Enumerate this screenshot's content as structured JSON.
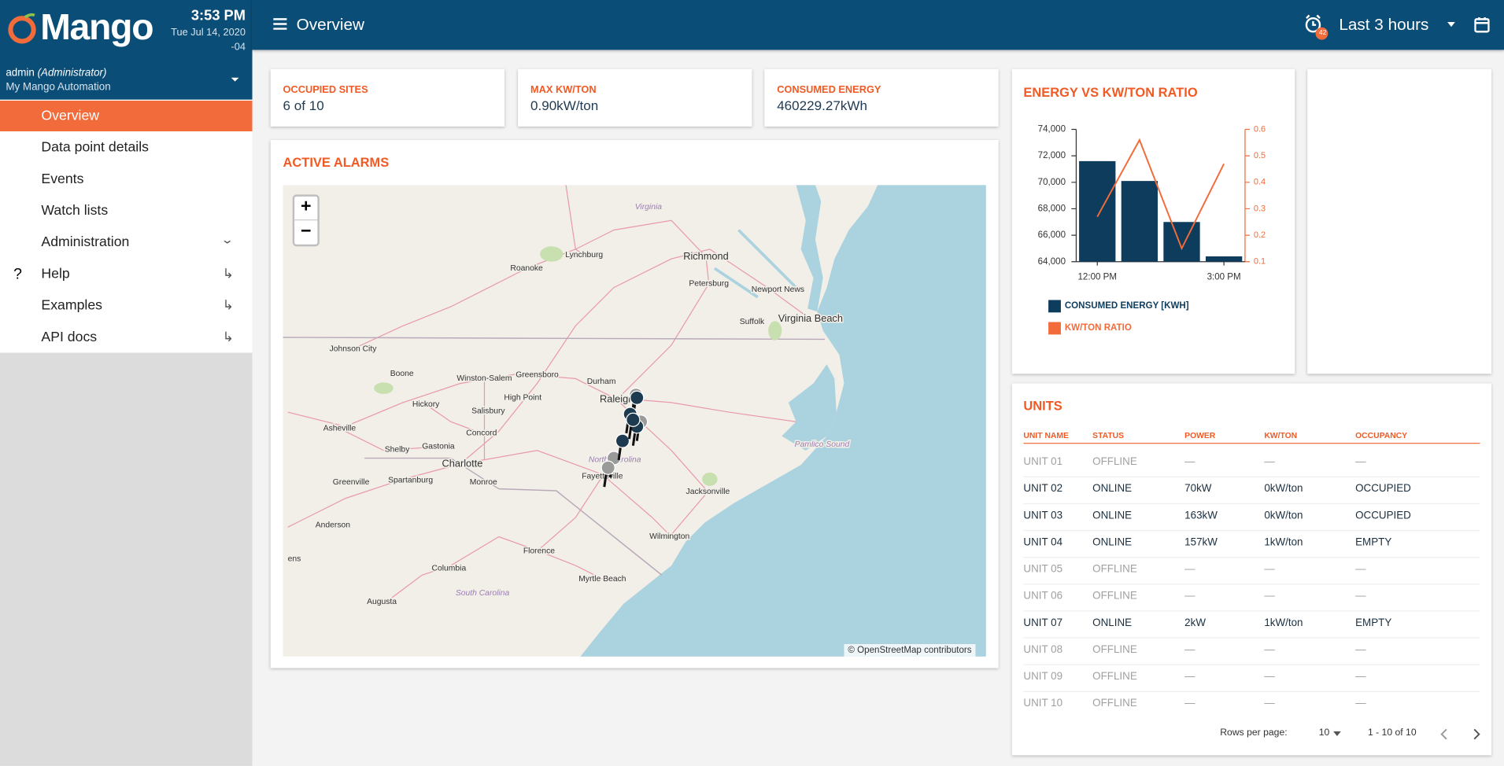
{
  "header": {
    "logo": "Mango",
    "time": "3:53 PM",
    "date": "Tue Jul 14, 2020",
    "tz": "-04",
    "user": "admin",
    "role": "(Administrator)",
    "org": "My Mango Automation",
    "page_title": "Overview",
    "time_range": "Last 3 hours",
    "alarm_badge": "42"
  },
  "nav": [
    "Overview",
    "Data point details",
    "Events",
    "Watch lists",
    "Administration",
    "Help",
    "Examples",
    "API docs"
  ],
  "cards": [
    {
      "title": "OCCUPIED SITES",
      "value": "6 of 10"
    },
    {
      "title": "MAX KW/TON",
      "value": "0.90kW/ton"
    },
    {
      "title": "CONSUMED ENERGY",
      "value": "460229.27kWh"
    }
  ],
  "alarms": {
    "title": "ACTIVE ALARMS",
    "zoom_in": "+",
    "zoom_out": "−",
    "attribution": "© OpenStreetMap contributors",
    "places": [
      "Virginia",
      "Lynchburg",
      "Richmond",
      "Roanoke",
      "Petersburg",
      "Newport News",
      "Suffolk",
      "Virginia Beach",
      "Johnson City",
      "Boone",
      "Winston-Salem",
      "Greensboro",
      "Durham",
      "Raleigh",
      "High Point",
      "Hickory",
      "Salisbury",
      "Asheville",
      "Concord",
      "Shelby",
      "Gastonia",
      "Charlotte",
      "North Carolina",
      "Fayetteville",
      "Spartanburg",
      "Greenville",
      "Monroe",
      "Jacksonville",
      "Pamlico Sound",
      "Anderson",
      "Wilmington",
      "Florence",
      "Columbia",
      "Myrtle Beach",
      "South Carolina",
      "Augusta",
      "ens"
    ]
  },
  "chart_data": {
    "type": "bar",
    "title": "ENERGY VS KW/TON RATIO",
    "categories": [
      "12:00 PM",
      null,
      null,
      "3:00 PM"
    ],
    "series": [
      {
        "name": "CONSUMED ENERGY [KWH]",
        "color": "#0e3c5c",
        "values": [
          71600,
          70100,
          67000,
          64400
        ]
      },
      {
        "name": "KW/TON RATIO",
        "color": "#f26b3a",
        "type": "line",
        "axis": "y2",
        "values": [
          0.27,
          0.56,
          0.15,
          0.47
        ]
      }
    ],
    "ylim": [
      64000,
      74000
    ],
    "yticks": [
      {
        "value": 64000,
        "label": "64,000"
      },
      {
        "value": 66000,
        "label": "66,000"
      },
      {
        "value": 68000,
        "label": "68,000"
      },
      {
        "value": 70000,
        "label": "70,000"
      },
      {
        "value": 72000,
        "label": "72,000"
      },
      {
        "value": 74000,
        "label": "74,000"
      }
    ],
    "y2lim": [
      0.1,
      0.6
    ],
    "y2ticks": [
      0.1,
      0.2,
      0.3,
      0.4,
      0.5,
      0.6
    ],
    "grid": false
  },
  "units": {
    "title": "UNITS",
    "columns": [
      "UNIT NAME",
      "STATUS",
      "POWER",
      "KW/TON",
      "OCCUPANCY"
    ],
    "rows": [
      [
        "UNIT 01",
        "OFFLINE",
        "—",
        "—",
        "—"
      ],
      [
        "UNIT 02",
        "ONLINE",
        "70kW",
        "0kW/ton",
        "OCCUPIED"
      ],
      [
        "UNIT 03",
        "ONLINE",
        "163kW",
        "0kW/ton",
        "OCCUPIED"
      ],
      [
        "UNIT 04",
        "ONLINE",
        "157kW",
        "1kW/ton",
        "EMPTY"
      ],
      [
        "UNIT 05",
        "OFFLINE",
        "—",
        "—",
        "—"
      ],
      [
        "UNIT 06",
        "OFFLINE",
        "—",
        "—",
        "—"
      ],
      [
        "UNIT 07",
        "ONLINE",
        "2kW",
        "1kW/ton",
        "EMPTY"
      ],
      [
        "UNIT 08",
        "OFFLINE",
        "—",
        "—",
        "—"
      ],
      [
        "UNIT 09",
        "OFFLINE",
        "—",
        "—",
        "—"
      ],
      [
        "UNIT 10",
        "OFFLINE",
        "—",
        "—",
        "—"
      ]
    ],
    "rows_per_page_label": "Rows per page:",
    "rows_per_page": "10",
    "range": "1 - 10 of 10"
  }
}
